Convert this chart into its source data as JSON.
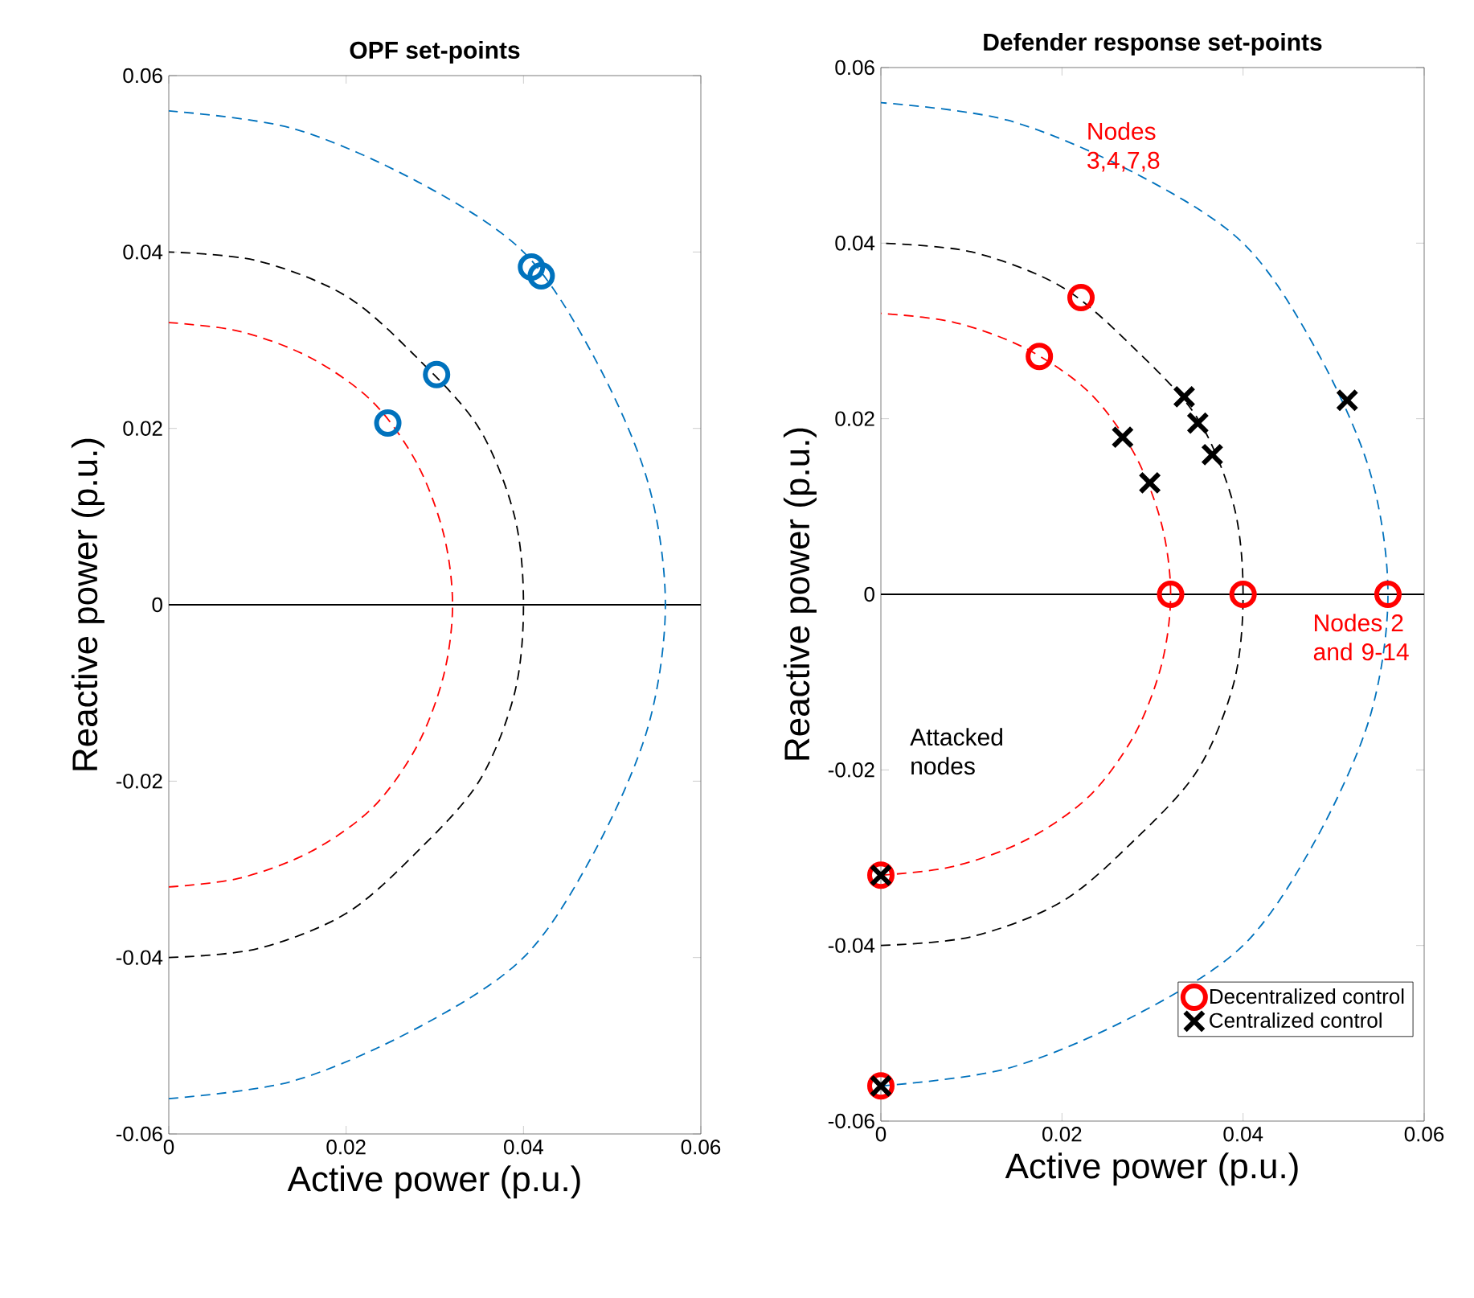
{
  "chart_data": [
    {
      "type": "scatter",
      "title": "OPF set-points",
      "xlabel": "Active power (p.u.)",
      "ylabel": "Reactive power (p.u.)",
      "xlim": [
        0,
        0.06
      ],
      "ylim": [
        -0.06,
        0.06
      ],
      "xticks": [
        0,
        0.02,
        0.04,
        0.06
      ],
      "yticks": [
        -0.06,
        -0.04,
        -0.02,
        0,
        0.02,
        0.04,
        0.06
      ],
      "grid": false,
      "legend": false,
      "ref_lines": [
        {
          "axis": "y",
          "value": 0,
          "color": "#000000",
          "line_style": "solid"
        }
      ],
      "series": [
        {
          "type": "line",
          "color": "#ff0000",
          "line_style": "dashed",
          "marker": "none",
          "x": [
            0,
            0.008,
            0.016,
            0.023,
            0.028,
            0.031,
            0.032,
            0.031,
            0.028,
            0.023,
            0.016,
            0.008,
            0
          ],
          "values": [
            -0.032,
            -0.031,
            -0.028,
            -0.023,
            -0.016,
            -0.008,
            0,
            0.008,
            0.016,
            0.023,
            0.028,
            0.031,
            0.032
          ]
        },
        {
          "type": "line",
          "color": "#000000",
          "line_style": "dashed",
          "marker": "none",
          "x": [
            0,
            0.01,
            0.02,
            0.028,
            0.035,
            0.039,
            0.04,
            0.039,
            0.035,
            0.028,
            0.02,
            0.01,
            0
          ],
          "values": [
            -0.04,
            -0.039,
            -0.035,
            -0.028,
            -0.02,
            -0.01,
            0,
            0.01,
            0.02,
            0.028,
            0.035,
            0.039,
            0.04
          ]
        },
        {
          "type": "line",
          "color": "#0072bd",
          "line_style": "dashed",
          "marker": "none",
          "x": [
            0,
            0.014,
            0.028,
            0.04,
            0.048,
            0.054,
            0.056,
            0.054,
            0.048,
            0.04,
            0.028,
            0.014,
            0
          ],
          "values": [
            -0.056,
            -0.054,
            -0.048,
            -0.04,
            -0.028,
            -0.014,
            0,
            0.014,
            0.028,
            0.04,
            0.048,
            0.054,
            0.056
          ]
        },
        {
          "color": "#0072bd",
          "marker": "circle",
          "x": [
            0.0247,
            0.0302,
            0.0409,
            0.042
          ],
          "values": [
            0.0206,
            0.0261,
            0.0383,
            0.0373
          ]
        }
      ]
    },
    {
      "type": "scatter",
      "title": "Defender response set-points",
      "xlabel": "Active power (p.u.)",
      "ylabel": "Reactive power (p.u.)",
      "xlim": [
        0,
        0.06
      ],
      "ylim": [
        -0.06,
        0.06
      ],
      "xticks": [
        0,
        0.02,
        0.04,
        0.06
      ],
      "yticks": [
        -0.06,
        -0.04,
        -0.02,
        0,
        0.02,
        0.04,
        0.06
      ],
      "grid": false,
      "legend": "bottom right",
      "ref_lines": [
        {
          "axis": "y",
          "value": 0,
          "color": "#000000",
          "line_style": "solid"
        }
      ],
      "annotations": [
        "Nodes 3,4,7,8",
        "Nodes 2 and 9-14",
        "Attacked nodes"
      ],
      "series": [
        {
          "type": "line",
          "color": "#ff0000",
          "line_style": "dashed",
          "marker": "none",
          "x": [
            0,
            0.008,
            0.016,
            0.023,
            0.028,
            0.031,
            0.032,
            0.031,
            0.028,
            0.023,
            0.016,
            0.008,
            0
          ],
          "values": [
            -0.032,
            -0.031,
            -0.028,
            -0.023,
            -0.016,
            -0.008,
            0,
            0.008,
            0.016,
            0.023,
            0.028,
            0.031,
            0.032
          ]
        },
        {
          "type": "line",
          "color": "#000000",
          "line_style": "dashed",
          "marker": "none",
          "x": [
            0,
            0.01,
            0.02,
            0.028,
            0.035,
            0.039,
            0.04,
            0.039,
            0.035,
            0.028,
            0.02,
            0.01,
            0
          ],
          "values": [
            -0.04,
            -0.039,
            -0.035,
            -0.028,
            -0.02,
            -0.01,
            0,
            0.01,
            0.02,
            0.028,
            0.035,
            0.039,
            0.04
          ]
        },
        {
          "type": "line",
          "color": "#0072bd",
          "line_style": "dashed",
          "marker": "none",
          "x": [
            0,
            0.014,
            0.028,
            0.04,
            0.048,
            0.054,
            0.056,
            0.054,
            0.048,
            0.04,
            0.028,
            0.014,
            0
          ],
          "values": [
            -0.056,
            -0.054,
            -0.048,
            -0.04,
            -0.028,
            -0.014,
            0,
            0.014,
            0.028,
            0.04,
            0.048,
            0.054,
            0.056
          ]
        },
        {
          "name": "Decentralized control",
          "color": "#ff0000",
          "marker": "circle",
          "x": [
            0.0175,
            0.0221,
            0.032,
            0.04,
            0.056,
            0,
            0
          ],
          "values": [
            0.0271,
            0.0338,
            0,
            0,
            0,
            -0.032,
            -0.056
          ]
        },
        {
          "name": "Centralized control",
          "color": "#000000",
          "marker": "cross",
          "x": [
            0.0267,
            0.0297,
            0.0335,
            0.035,
            0.0366,
            0.0515,
            0,
            0
          ],
          "values": [
            0.0179,
            0.0127,
            0.0225,
            0.0195,
            0.0159,
            0.0221,
            -0.032,
            -0.056
          ]
        }
      ]
    }
  ]
}
